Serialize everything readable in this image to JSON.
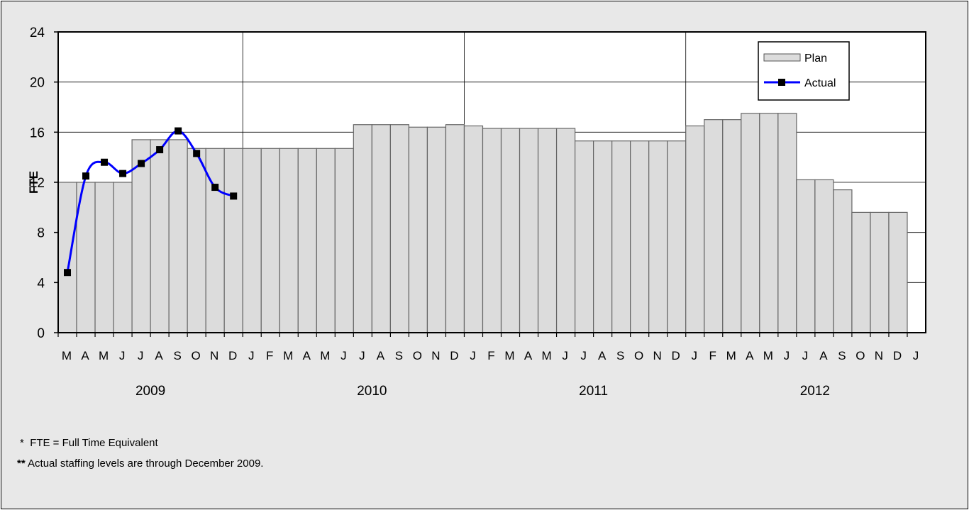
{
  "chart_data": {
    "type": "bar",
    "ylabel": "FTE",
    "ylim": [
      0,
      24
    ],
    "yticks": [
      0,
      4,
      8,
      12,
      16,
      20,
      24
    ],
    "grid": "horizontal and yearly vertical",
    "legend_position": "top-right",
    "month_ticks": [
      "M",
      "A",
      "M",
      "J",
      "J",
      "A",
      "S",
      "O",
      "N",
      "D",
      "J",
      "F",
      "M",
      "A",
      "M",
      "J",
      "J",
      "A",
      "S",
      "O",
      "N",
      "D",
      "J",
      "F",
      "M",
      "A",
      "M",
      "J",
      "J",
      "A",
      "S",
      "O",
      "N",
      "D",
      "J",
      "F",
      "M",
      "A",
      "M",
      "J",
      "J",
      "A",
      "S",
      "O",
      "N",
      "D",
      "J"
    ],
    "years": [
      "2009",
      "2010",
      "2011",
      "2012"
    ],
    "series": [
      {
        "name": "Plan",
        "type": "bar",
        "color": "#dcdcdc",
        "values": [
          12,
          12,
          12,
          12,
          15.4,
          15.4,
          15.4,
          14.7,
          14.7,
          14.7,
          14.7,
          14.7,
          14.7,
          14.7,
          14.7,
          14.7,
          16.6,
          16.6,
          16.6,
          16.4,
          16.4,
          16.6,
          16.5,
          16.3,
          16.3,
          16.3,
          16.3,
          16.3,
          15.3,
          15.3,
          15.3,
          15.3,
          15.3,
          15.3,
          16.5,
          17,
          17,
          17.5,
          17.5,
          17.5,
          12.2,
          12.2,
          11.4,
          9.6,
          9.6,
          9.6
        ]
      },
      {
        "name": "Actual",
        "type": "line",
        "color": "#0000ff",
        "values": [
          4.8,
          12.5,
          13.6,
          12.7,
          13.5,
          14.6,
          16.1,
          14.3,
          11.6,
          10.9
        ]
      }
    ]
  },
  "footnotes": {
    "note1_marker": "*",
    "note1_text": "FTE = Full Time Equivalent",
    "note2_marker": "**",
    "note2_text": "Actual staffing levels are through December 2009."
  }
}
